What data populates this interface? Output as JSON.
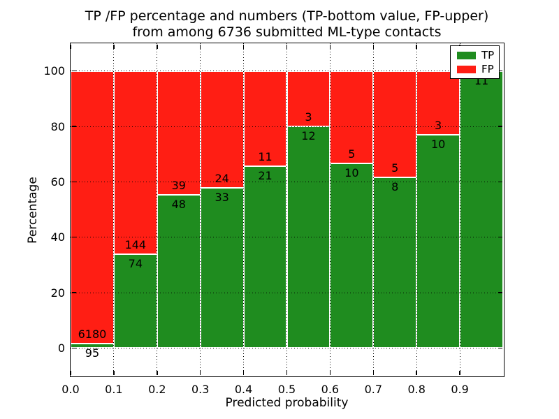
{
  "title": {
    "line1": "TP /FP percentage and numbers (TP-bottom value, FP-upper)",
    "line2": "from among 6736 submitted ML-type contacts"
  },
  "chart_data": {
    "type": "bar",
    "stacked": true,
    "normalized": "percent (each bin stacks to 100%)",
    "title": "TP /FP percentage and numbers (TP-bottom value, FP-upper) from among 6736 submitted ML-type contacts",
    "xlabel": "Predicted probability",
    "ylabel": "Percentage",
    "total_contacts": 6736,
    "bins": [
      "0.0-0.1",
      "0.1-0.2",
      "0.2-0.3",
      "0.3-0.4",
      "0.4-0.5",
      "0.5-0.6",
      "0.6-0.7",
      "0.7-0.8",
      "0.8-0.9",
      "0.9-1.0"
    ],
    "bin_edges": [
      0.0,
      0.1,
      0.2,
      0.3,
      0.4,
      0.5,
      0.6,
      0.7,
      0.8,
      0.9,
      1.0
    ],
    "series": [
      {
        "name": "TP",
        "color": "#1f8c1f",
        "counts": [
          95,
          74,
          48,
          33,
          21,
          12,
          10,
          8,
          10,
          11
        ]
      },
      {
        "name": "FP",
        "color": "#ff1e14",
        "counts": [
          6180,
          144,
          39,
          24,
          11,
          3,
          5,
          5,
          3,
          0
        ]
      }
    ],
    "tp_percent": [
      1.51,
      33.94,
      55.17,
      57.89,
      65.63,
      80.0,
      66.67,
      61.54,
      76.92,
      100.0
    ],
    "xticks": [
      "0.0",
      "0.1",
      "0.2",
      "0.3",
      "0.4",
      "0.5",
      "0.6",
      "0.7",
      "0.8",
      "0.9"
    ],
    "yticks": [
      "0",
      "20",
      "40",
      "60",
      "80",
      "100"
    ],
    "xlim": [
      0,
      1
    ],
    "ylim": [
      -10,
      110
    ],
    "grid": true,
    "grid_style": "dotted black",
    "legend": {
      "position": "upper right",
      "entries": [
        {
          "label": "TP",
          "color": "#1f8c1f"
        },
        {
          "label": "FP",
          "color": "#ff1e14"
        }
      ]
    }
  }
}
